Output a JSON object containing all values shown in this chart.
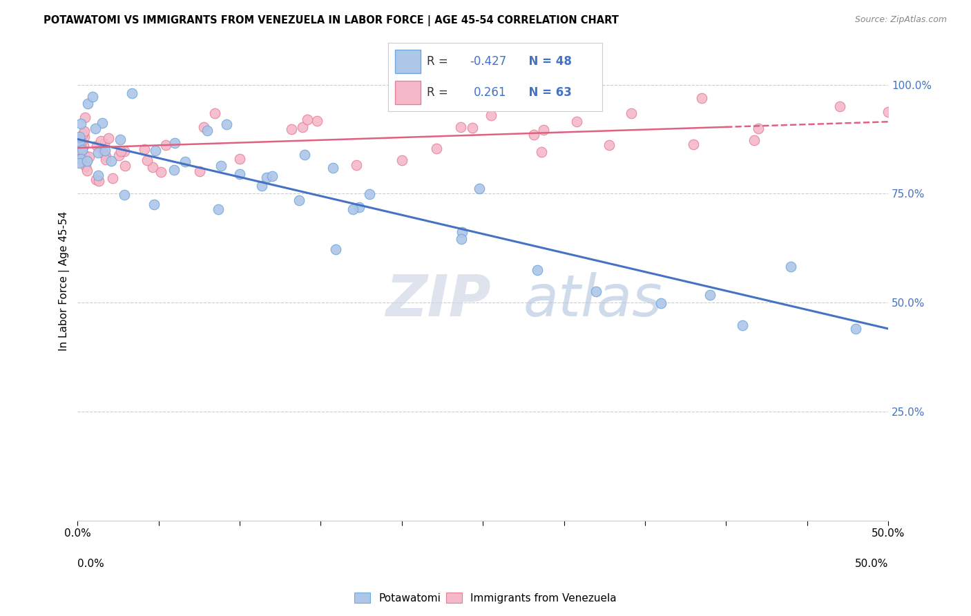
{
  "title": "POTAWATOMI VS IMMIGRANTS FROM VENEZUELA IN LABOR FORCE | AGE 45-54 CORRELATION CHART",
  "source": "Source: ZipAtlas.com",
  "ylabel": "In Labor Force | Age 45-54",
  "legend_labels": [
    "Potawatomi",
    "Immigrants from Venezuela"
  ],
  "R_blue": -0.427,
  "N_blue": 48,
  "R_pink": 0.261,
  "N_pink": 63,
  "blue_color": "#aec6e8",
  "blue_edge": "#6fa8dc",
  "pink_color": "#f4b8c8",
  "pink_edge": "#e8809a",
  "blue_line_color": "#4472c4",
  "pink_line_color": "#e06080",
  "bg_color": "#ffffff",
  "xlim": [
    0.0,
    0.5
  ],
  "ylim": [
    0.0,
    1.1
  ],
  "right_yticks": [
    0.25,
    0.5,
    0.75,
    1.0
  ],
  "right_yticklabels": [
    "25.0%",
    "50.0%",
    "75.0%",
    "100.0%"
  ],
  "blue_intercept": 0.875,
  "blue_slope": -0.87,
  "pink_intercept": 0.855,
  "pink_slope": 0.12,
  "pink_line_solid_end": 0.4,
  "watermark_zip_color": "#d0d8e8",
  "watermark_atlas_color": "#b0c4de"
}
